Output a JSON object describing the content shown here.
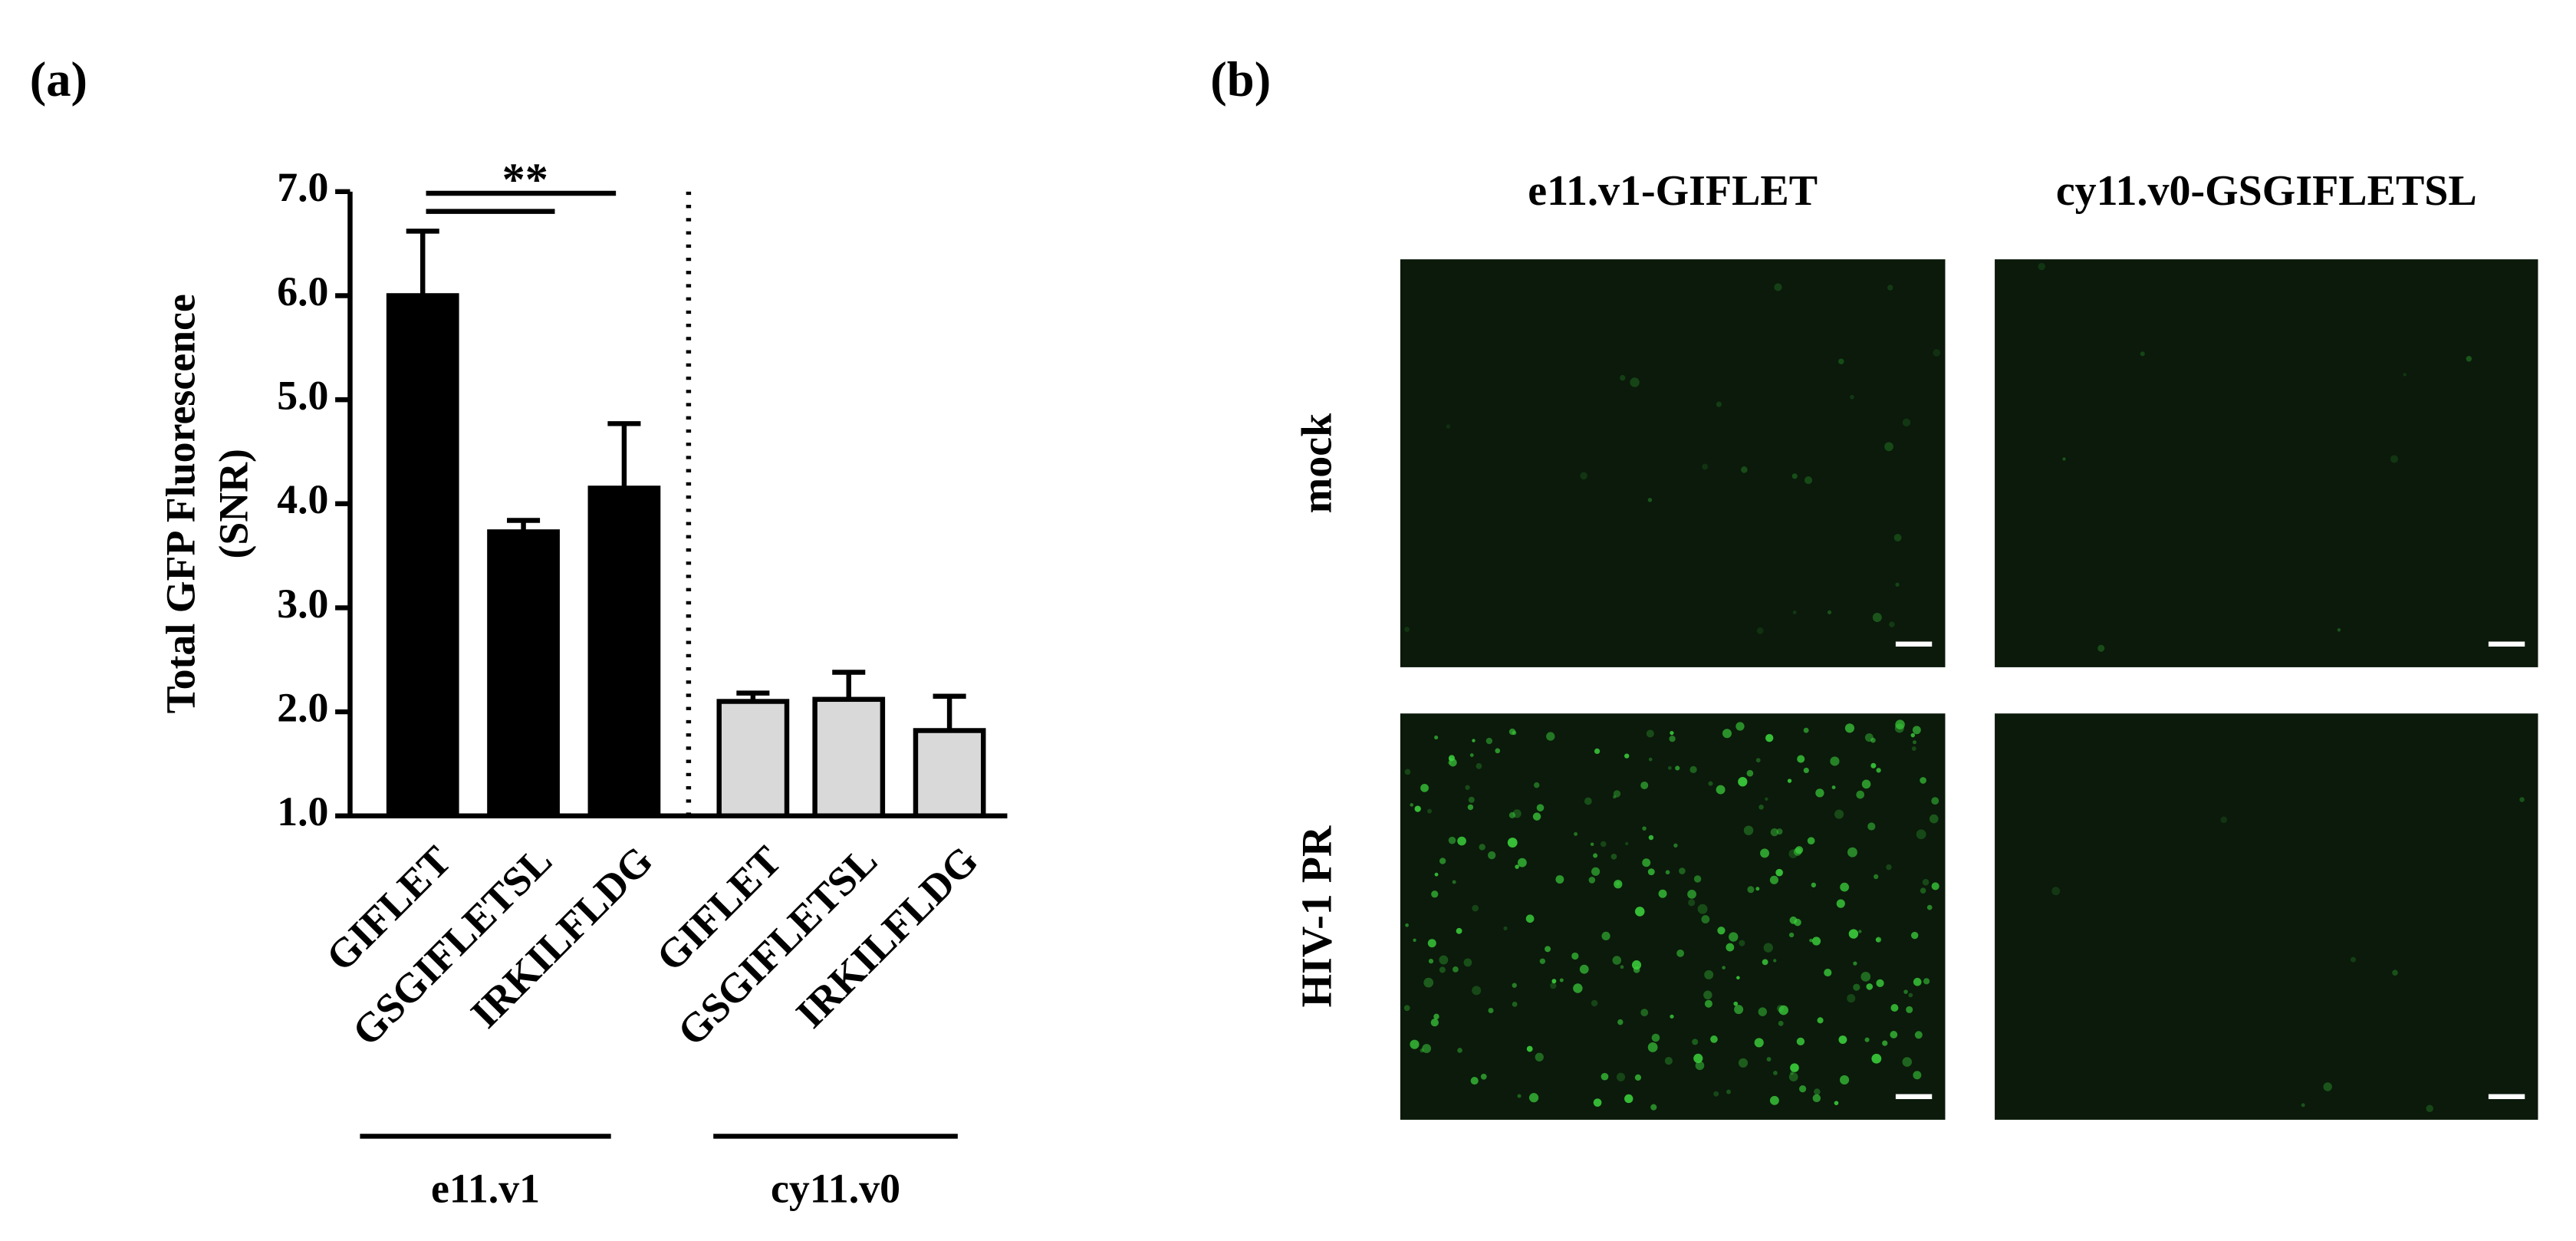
{
  "panel_a_label": "(a)",
  "panel_b_label": "(b)",
  "chart_data": {
    "type": "bar",
    "y_label": [
      "Total GFP Fluorescence",
      "(SNR)"
    ],
    "categories": [
      "GIFLET",
      "GSGIFLETSL",
      "IRKILFLDG",
      "GIFLET",
      "GSGIFLETSL",
      "IRKILFLDG"
    ],
    "values": [
      6.0,
      3.73,
      4.15,
      2.1,
      2.12,
      1.82
    ],
    "errors": [
      0.62,
      0.11,
      0.62,
      0.08,
      0.26,
      0.33
    ],
    "colors": [
      "#000000",
      "#000000",
      "#000000",
      "#d9d9d9",
      "#d9d9d9",
      "#d9d9d9"
    ],
    "groups": [
      "e11.v1",
      "cy11.v0"
    ],
    "significance": "**",
    "ylim": [
      1,
      7
    ],
    "yticks": [
      {
        "value": 1,
        "label": "1.0"
      },
      {
        "value": 2,
        "label": "2.0"
      },
      {
        "value": 3,
        "label": "3.0"
      },
      {
        "value": 4,
        "label": "4.0"
      },
      {
        "value": 5,
        "label": "5.0"
      },
      {
        "value": 6,
        "label": "6.0"
      },
      {
        "value": 7,
        "label": "7.0"
      }
    ]
  },
  "images": {
    "columns": [
      "e11.v1-GIFLET",
      "cy11.v0-GSGIFLETSL"
    ],
    "rows": [
      "mock",
      "HIV-1 PR"
    ]
  }
}
